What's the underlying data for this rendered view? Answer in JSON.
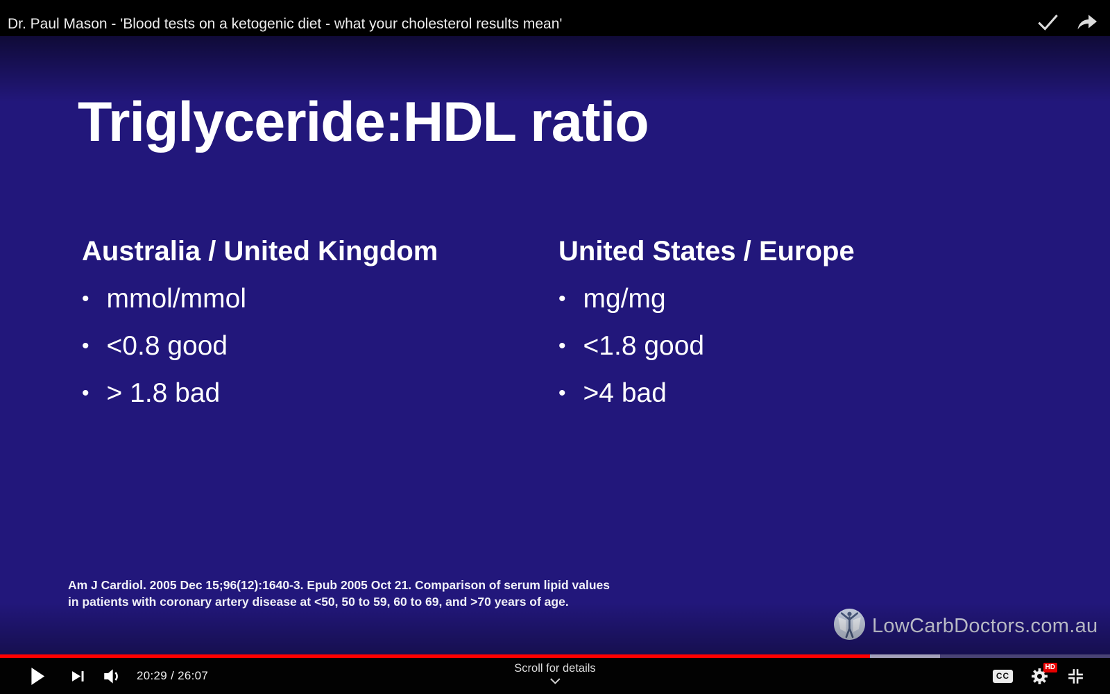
{
  "header": {
    "title": "Dr. Paul Mason - 'Blood tests on a ketogenic diet - what your cholesterol results mean'"
  },
  "slide": {
    "background_color": "#22177b",
    "title": "Triglyceride:HDL ratio",
    "columns": [
      {
        "heading": "Australia / United Kingdom",
        "bullets": [
          "mmol/mmol",
          "<0.8 good",
          "> 1.8 bad"
        ]
      },
      {
        "heading": "United States / Europe",
        "bullets": [
          "mg/mg",
          "<1.8 good",
          ">4 bad"
        ]
      }
    ],
    "citation_line1": "Am J Cardiol. 2005 Dec 15;96(12):1640-3. Epub 2005 Oct 21. Comparison of serum lipid values",
    "citation_line2": "in patients with coronary artery disease at <50, 50 to 59, 60 to 69, and >70 years of age.",
    "logo_text": "LowCarbDoctors.com.au"
  },
  "player": {
    "current_time": "20:29",
    "duration": "26:07",
    "time_display": "20:29 / 26:07",
    "progress_percent": 78.4,
    "buffered_percent": 84.7,
    "progress_color": "#ff0000",
    "scroll_hint": "Scroll for details",
    "cc_label": "CC",
    "hd_label": "HD"
  }
}
